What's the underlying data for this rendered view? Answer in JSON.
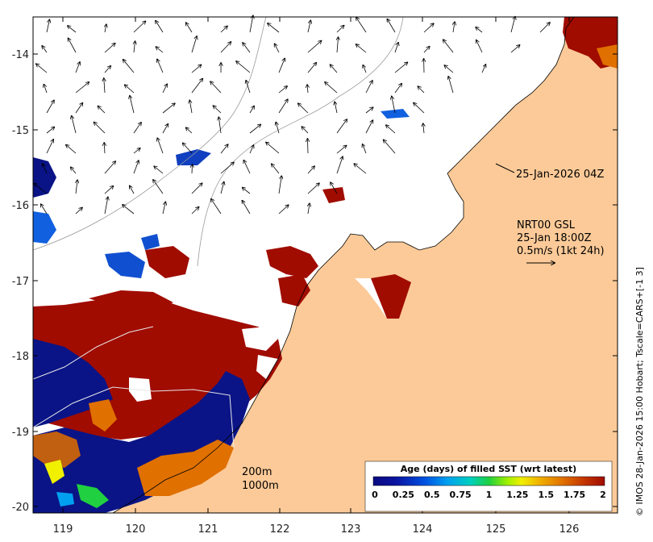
{
  "map": {
    "y_tick_labels": [
      "-14",
      "-15",
      "-16",
      "-17",
      "-18",
      "-19",
      "-20"
    ],
    "x_tick_labels": [
      "119",
      "120",
      "121",
      "122",
      "123",
      "124",
      "125",
      "126"
    ],
    "timestamp_label": "25-Jan-2026 04Z",
    "current_model": "NRT00 GSL",
    "current_time": "25-Jan 18:00Z",
    "current_scale": "0.5m/s (1kt 24h)",
    "isobath_1": "200m",
    "isobath_2": "1000m",
    "credit": "© IMOS 28-Jan-2026 15:00 Hobart; Tscale=CARS+[-1 3]",
    "colors": {
      "land": "#fcca98",
      "age_0": "#0a1486",
      "age_2": "#a00c00"
    }
  },
  "colorbar": {
    "title": "Age (days) of filled SST (wrt latest)",
    "tick_labels": [
      "0",
      "0.25",
      "0.5",
      "0.75",
      "1",
      "1.25",
      "1.5",
      "1.75",
      "2"
    ],
    "range": [
      0,
      2
    ]
  }
}
